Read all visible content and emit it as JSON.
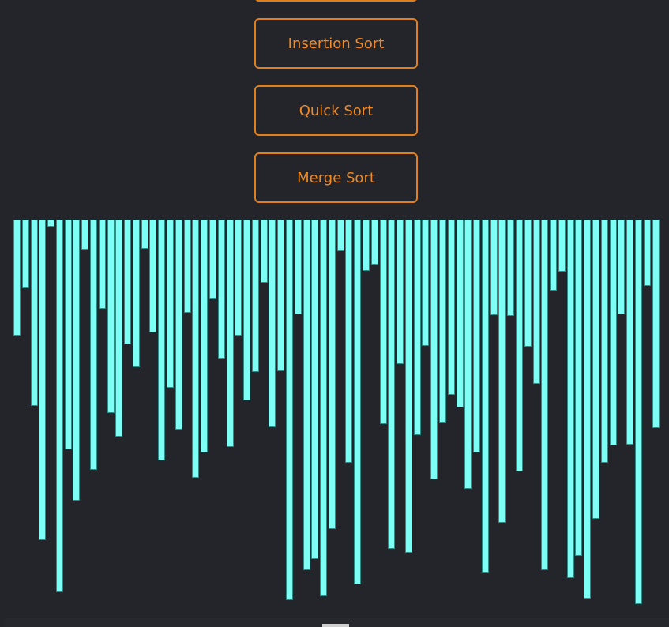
{
  "buttons": {
    "clipped_label": "",
    "insertion_label": "Insertion Sort",
    "quick_label": "Quick Sort",
    "merge_label": "Merge Sort"
  },
  "colors": {
    "background": "#23252b",
    "button_border": "#e0801c",
    "button_text": "#f08a24",
    "bar_fill": "#7efff5",
    "bar_border": "#2b8c88"
  },
  "bars": {
    "values": [
      147,
      87,
      236,
      406,
      9,
      472,
      291,
      356,
      38,
      317,
      113,
      245,
      275,
      158,
      187,
      37,
      143,
      305,
      213,
      266,
      118,
      327,
      295,
      101,
      176,
      288,
      147,
      229,
      193,
      80,
      263,
      192,
      482,
      120,
      444,
      430,
      477,
      392,
      40,
      308,
      462,
      65,
      57,
      259,
      417,
      183,
      422,
      273,
      160,
      329,
      258,
      222,
      238,
      341,
      295,
      447,
      121,
      384,
      122,
      319,
      161,
      208,
      444,
      90,
      66,
      454,
      426,
      480,
      379,
      308,
      286,
      120,
      285,
      487,
      84,
      264
    ],
    "max_value": 500
  }
}
